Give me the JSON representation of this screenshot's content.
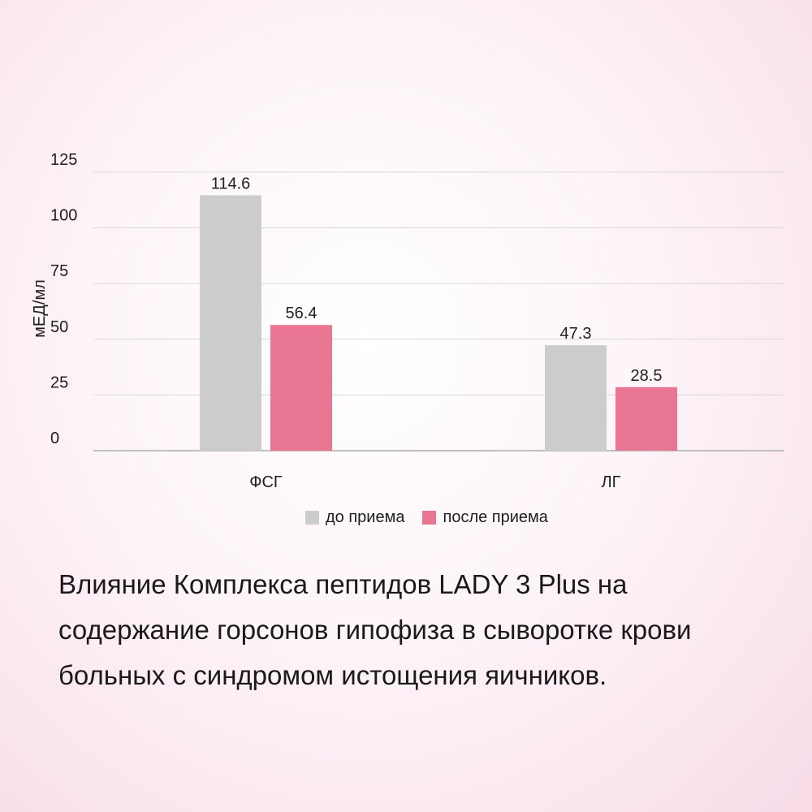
{
  "chart_data": {
    "type": "bar",
    "categories": [
      "ФСГ",
      "ЛГ"
    ],
    "series": [
      {
        "name": "до приема",
        "values": [
          114.6,
          47.3
        ],
        "color": "#cccccc"
      },
      {
        "name": "после приема",
        "values": [
          56.4,
          28.5
        ],
        "color": "#e87592"
      }
    ],
    "data_labels": [
      [
        "114.6",
        "47.3"
      ],
      [
        "56.4",
        "28.5"
      ]
    ],
    "ylabel": "мЕД/мл",
    "xlabel": "",
    "ylim": [
      0,
      125
    ],
    "yticks": [
      "0",
      "25",
      "50",
      "75",
      "100",
      "125"
    ],
    "grid": true,
    "legend_position": "bottom"
  },
  "caption": "Влияние Комплекса пептидов LADY 3 Plus на содержание горсонов гипофиза в сыворотке крови больных с синдромом истощения яичников.",
  "colors": {
    "gridline": "#d9d9d9",
    "axis": "#bfbfbf"
  }
}
